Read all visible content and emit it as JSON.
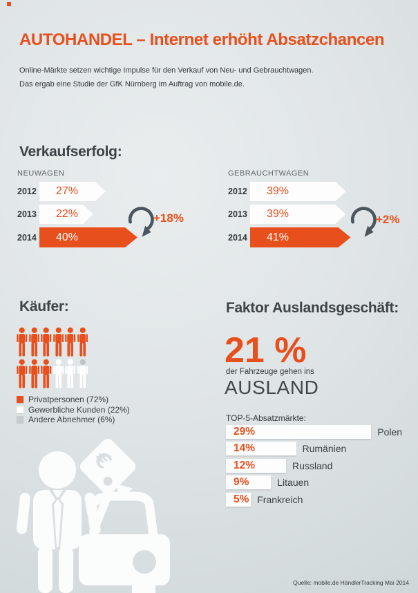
{
  "page": {
    "accent": "#e7501d",
    "background_top": "#e9edee",
    "background_bottom": "#ccd3d6"
  },
  "header": {
    "title": "AUTOHANDEL – Internet erhöht Absatzchancen",
    "subtitle_line1": "Online-Märkte setzen wichtige Impulse für den Verkauf von Neu- und Gebrauchtwagen.",
    "subtitle_line2": "Das ergab eine Studie der GfK Nürnberg im Auftrag von mobile.de."
  },
  "sales": {
    "heading": "Verkaufserfolg:",
    "groups": [
      {
        "label": "NEUWAGEN",
        "delta": "+18%",
        "rows": [
          {
            "year": "2012",
            "value": "27%",
            "pct": 27,
            "highlight": false
          },
          {
            "year": "2013",
            "value": "22%",
            "pct": 22,
            "highlight": false
          },
          {
            "year": "2014",
            "value": "40%",
            "pct": 40,
            "highlight": true
          }
        ]
      },
      {
        "label": "GEBRAUCHTWAGEN",
        "delta": "+2%",
        "rows": [
          {
            "year": "2012",
            "value": "39%",
            "pct": 39,
            "highlight": false
          },
          {
            "year": "2013",
            "value": "39%",
            "pct": 39,
            "highlight": false
          },
          {
            "year": "2014",
            "value": "41%",
            "pct": 41,
            "highlight": true
          }
        ]
      }
    ]
  },
  "buyers": {
    "heading": "Käufer:",
    "icons": {
      "orange": 9,
      "white": 2,
      "mixed": 1
    },
    "icon_colors": {
      "orange": "#e7501d",
      "white": "#ffffff",
      "gray": "#bfc5c7"
    },
    "legend": [
      {
        "label": "Privatpersonen (72%)",
        "color": "#e7501d"
      },
      {
        "label": "Gewerbliche Kunden (22%)",
        "color": "#ffffff"
      },
      {
        "label": "Andere Abnehmer (6%)",
        "color": "#c6cbcd"
      }
    ]
  },
  "foreign": {
    "heading": "Faktor Auslandsgeschäft:",
    "big_value": "21 %",
    "caption": "der Fahrzeuge gehen ins",
    "caption_word": "AUSLAND",
    "top5_label": "TOP-5-Absatzmärkte:",
    "markets": [
      {
        "value": "29%",
        "pct": 29,
        "country": "Polen"
      },
      {
        "value": "14%",
        "pct": 14,
        "country": "Rumänien"
      },
      {
        "value": "12%",
        "pct": 12,
        "country": "Russland"
      },
      {
        "value": "9%",
        "pct": 9,
        "country": "Litauen"
      },
      {
        "value": "5%",
        "pct": 5,
        "country": "Frankreich"
      }
    ]
  },
  "footer": {
    "source": "Quelle: mobile.de HändlerTracking Mai 2014"
  },
  "chart_data": [
    {
      "type": "bar",
      "title": "Verkaufserfolg – Neuwagen",
      "categories": [
        "2012",
        "2013",
        "2014"
      ],
      "values": [
        27,
        22,
        40
      ],
      "unit": "%",
      "annotation": "+18%",
      "highlight_index": 2,
      "xlabel": "",
      "ylabel": ""
    },
    {
      "type": "bar",
      "title": "Verkaufserfolg – Gebrauchtwagen",
      "categories": [
        "2012",
        "2013",
        "2014"
      ],
      "values": [
        39,
        39,
        41
      ],
      "unit": "%",
      "annotation": "+2%",
      "highlight_index": 2,
      "xlabel": "",
      "ylabel": ""
    },
    {
      "type": "pie",
      "title": "Käufer",
      "categories": [
        "Privatpersonen",
        "Gewerbliche Kunden",
        "Andere Abnehmer"
      ],
      "values": [
        72,
        22,
        6
      ],
      "unit": "%"
    },
    {
      "type": "stat",
      "title": "Faktor Auslandsgeschäft",
      "value": 21,
      "unit": "%",
      "label": "der Fahrzeuge gehen ins AUSLAND"
    },
    {
      "type": "bar",
      "title": "TOP-5-Absatzmärkte",
      "categories": [
        "Polen",
        "Rumänien",
        "Russland",
        "Litauen",
        "Frankreich"
      ],
      "values": [
        29,
        14,
        12,
        9,
        5
      ],
      "unit": "%"
    }
  ]
}
